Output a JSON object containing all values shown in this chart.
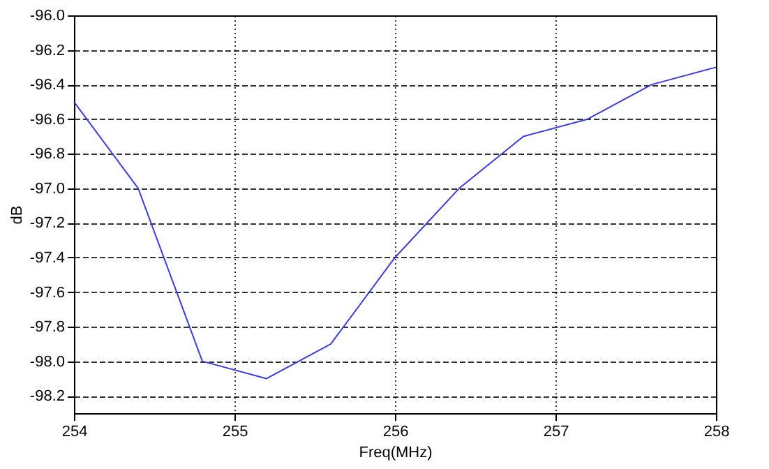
{
  "chart_data": {
    "type": "line",
    "xlabel": "Freq(MHz)",
    "ylabel": "dB",
    "x": [
      254,
      254.4,
      254.8,
      255.2,
      255.6,
      256,
      256.4,
      256.8,
      257.2,
      257.6,
      258
    ],
    "series": [
      {
        "color": "#3c3cdc",
        "values": [
          -96.5,
          -97.0,
          -98.0,
          -98.1,
          -97.9,
          -97.4,
          -97.0,
          -96.7,
          -96.6,
          -96.4,
          -96.3
        ]
      }
    ],
    "xlim": [
      254,
      258
    ],
    "xticks": [
      254,
      255,
      256,
      257,
      258
    ],
    "ylim": [
      -98.3,
      -96.0
    ],
    "yticks": [
      {
        "value": -96.0,
        "label": "-96.0"
      },
      {
        "value": -96.2,
        "label": "-96.2"
      },
      {
        "value": -96.4,
        "label": "-96.4"
      },
      {
        "value": -96.6,
        "label": "-96.6"
      },
      {
        "value": -96.8,
        "label": "-96.8"
      },
      {
        "value": -97.0,
        "label": "-97.0"
      },
      {
        "value": -97.2,
        "label": "-97.2"
      },
      {
        "value": -97.4,
        "label": "-97.4"
      },
      {
        "value": -97.6,
        "label": "-97.6"
      },
      {
        "value": -97.8,
        "label": "-97.8"
      },
      {
        "value": -98.0,
        "label": "-98.0"
      },
      {
        "value": -98.2,
        "label": "-98.2"
      }
    ],
    "grid": true,
    "marker": "none",
    "line_style": "solid"
  }
}
